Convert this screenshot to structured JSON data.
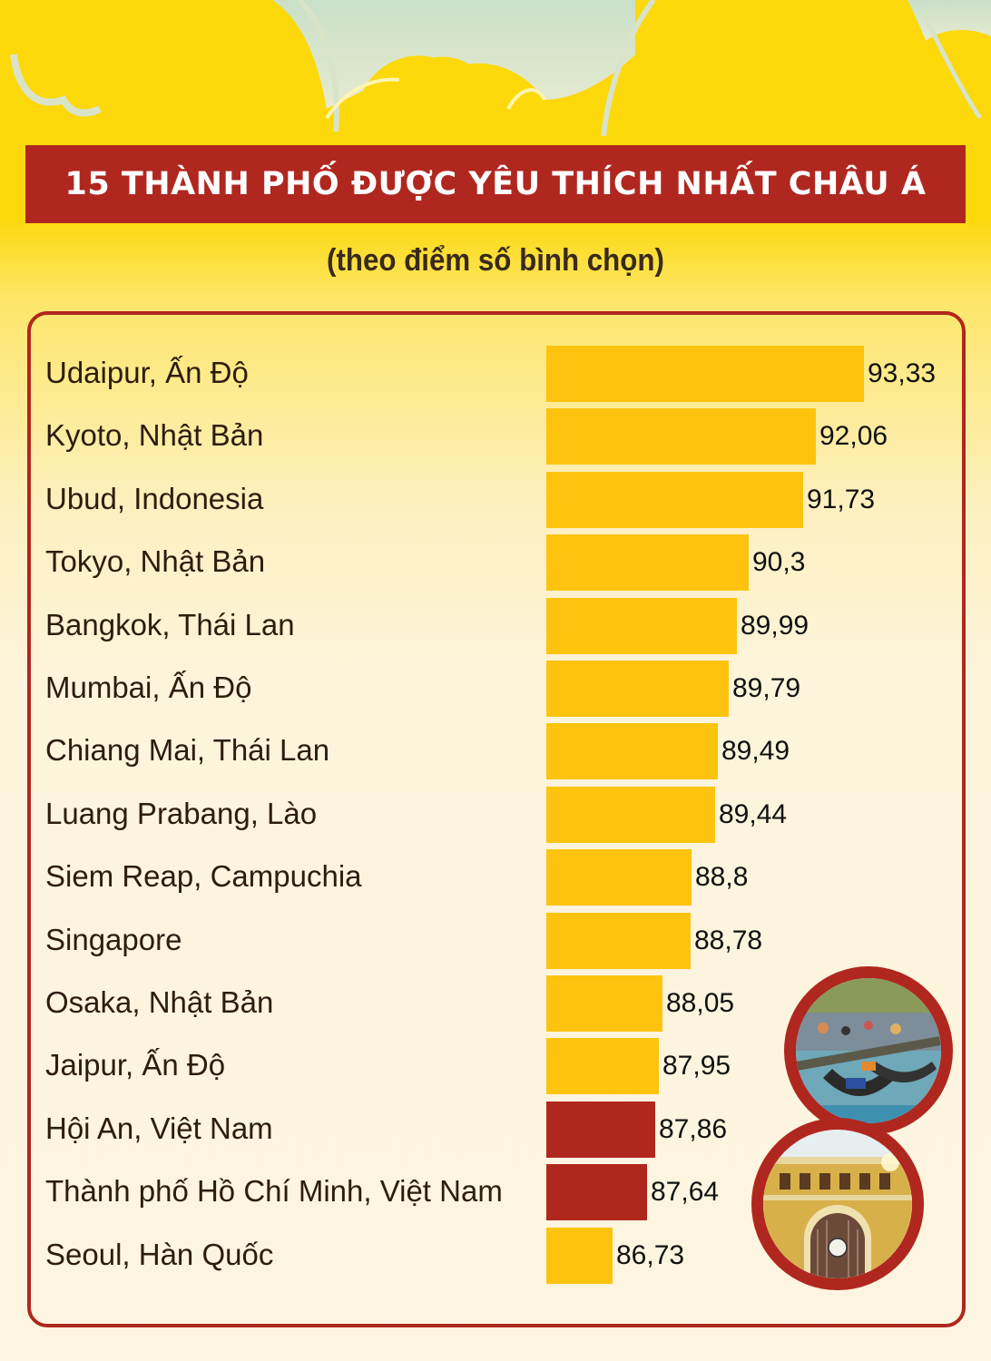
{
  "header": {
    "title": "15 THÀNH PHỐ ĐƯỢC YÊU THÍCH NHẤT CHÂU Á",
    "subtitle": "(theo điểm số bình chọn)"
  },
  "colors": {
    "background_top": "#fdd80a",
    "background_bottom": "#fdf5e1",
    "banner": "#b0271f",
    "bar_default": "#fdc30e",
    "bar_highlight": "#b0271f",
    "panel_border": "#b0271f"
  },
  "rows": [
    {
      "label": "Udaipur, Ấn Độ",
      "value": "93,33",
      "highlight": false
    },
    {
      "label": "Kyoto, Nhật Bản",
      "value": "92,06",
      "highlight": false
    },
    {
      "label": "Ubud, Indonesia",
      "value": "91,73",
      "highlight": false
    },
    {
      "label": "Tokyo, Nhật Bản",
      "value": "90,3",
      "highlight": false
    },
    {
      "label": "Bangkok, Thái Lan",
      "value": "89,99",
      "highlight": false
    },
    {
      "label": "Mumbai, Ấn Độ",
      "value": "89,79",
      "highlight": false
    },
    {
      "label": "Chiang Mai, Thái Lan",
      "value": "89,49",
      "highlight": false
    },
    {
      "label": "Luang Prabang, Lào",
      "value": "89,44",
      "highlight": false
    },
    {
      "label": "Siem Reap, Campuchia",
      "value": "88,8",
      "highlight": false
    },
    {
      "label": "Singapore",
      "value": "88,78",
      "highlight": false
    },
    {
      "label": "Osaka, Nhật Bản",
      "value": "88,05",
      "highlight": false
    },
    {
      "label": "Jaipur, Ấn Độ",
      "value": "87,95",
      "highlight": false
    },
    {
      "label": "Hội An, Việt Nam",
      "value": "87,86",
      "highlight": true
    },
    {
      "label": "Thành phố Hồ Chí Minh, Việt Nam",
      "value": "87,64",
      "highlight": true
    },
    {
      "label": " Seoul, Hàn Quốc",
      "value": "86,73",
      "highlight": false
    }
  ],
  "photos": [
    {
      "name": "hoi-an-boats-photo"
    },
    {
      "name": "saigon-post-office-photo"
    }
  ],
  "chart_data": {
    "type": "bar",
    "orientation": "horizontal",
    "title": "15 THÀNH PHỐ ĐƯỢC YÊU THÍCH NHẤT CHÂU Á",
    "subtitle": "(theo điểm số bình chọn)",
    "xlabel": "",
    "ylabel": "",
    "categories": [
      "Udaipur, Ấn Độ",
      "Kyoto, Nhật Bản",
      "Ubud, Indonesia",
      "Tokyo, Nhật Bản",
      "Bangkok, Thái Lan",
      "Mumbai, Ấn Độ",
      "Chiang Mai, Thái Lan",
      "Luang Prabang, Lào",
      "Siem Reap, Campuchia",
      "Singapore",
      "Osaka, Nhật Bản",
      "Jaipur, Ấn Độ",
      "Hội An, Việt Nam",
      "Thành phố Hồ Chí Minh, Việt Nam",
      "Seoul, Hàn Quốc"
    ],
    "values": [
      93.33,
      92.06,
      91.73,
      90.3,
      89.99,
      89.79,
      89.49,
      89.44,
      88.8,
      88.78,
      88.05,
      87.95,
      87.86,
      87.64,
      86.73
    ],
    "highlighted": [
      "Hội An, Việt Nam",
      "Thành phố Hồ Chí Minh, Việt Nam"
    ],
    "data_labels": true,
    "grid": false,
    "legend": null,
    "xlim": [
      85,
      93.33
    ]
  }
}
